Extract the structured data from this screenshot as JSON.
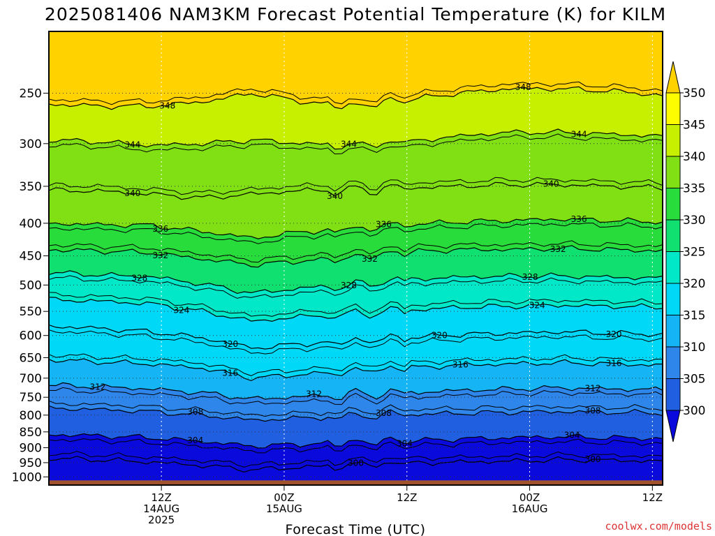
{
  "chart_data": {
    "type": "heatmap",
    "title": "2025081406 NAM3KM Forecast Potential Temperature (K) for KILM",
    "xlabel": "Forecast Time (UTC)",
    "ylabel": "",
    "credit": "coolwx.com/models",
    "y_axis": {
      "scale": "log-pressure",
      "ylim": [
        1030,
        200
      ],
      "tick_values": [
        250,
        300,
        350,
        400,
        450,
        500,
        550,
        600,
        650,
        700,
        750,
        800,
        850,
        900,
        950,
        1000
      ],
      "tick_labels": [
        "250",
        "300",
        "350",
        "400",
        "450",
        "500",
        "550",
        "600",
        "650",
        "700",
        "750",
        "800",
        "850",
        "900",
        "950",
        "1000"
      ]
    },
    "x_axis": {
      "range_hours": [
        -5,
        55
      ],
      "ticks": [
        {
          "hour": 6,
          "lines": [
            "12Z",
            "14AUG",
            "2025"
          ]
        },
        {
          "hour": 18,
          "lines": [
            "00Z",
            "15AUG"
          ]
        },
        {
          "hour": 30,
          "lines": [
            "12Z"
          ]
        },
        {
          "hour": 42,
          "lines": [
            "00Z",
            "16AUG"
          ]
        },
        {
          "hour": 54,
          "lines": [
            "12Z"
          ]
        }
      ]
    },
    "colorbar": {
      "levels": [
        300,
        305,
        310,
        315,
        320,
        325,
        330,
        335,
        340,
        345,
        350
      ],
      "labels": [
        "300",
        "305",
        "310",
        "315",
        "320",
        "325",
        "330",
        "335",
        "340",
        "345",
        "350"
      ],
      "colors": [
        "#0a0adc",
        "#1f5fe0",
        "#2f86ea",
        "#14b4f5",
        "#00d8f8",
        "#00e8c8",
        "#10e070",
        "#28dc3c",
        "#80e014",
        "#c6f000",
        "#fdfd00",
        "#ffd200"
      ]
    },
    "contour_interval": 4,
    "series": [
      {
        "name": "348",
        "label_hours": [
          6.5,
          41.5
        ],
        "values": [
          260,
          262,
          262,
          258,
          250,
          258,
          262,
          256,
          250,
          246,
          246,
          248,
          252
        ]
      },
      {
        "name": "344",
        "label_hours": [
          3,
          24,
          47
        ],
        "values": [
          296,
          298,
          302,
          300,
          296,
          300,
          302,
          298,
          292,
          288,
          288,
          290,
          292
        ]
      },
      {
        "name": "340",
        "label_hours": [
          3,
          23,
          44
        ],
        "values": [
          355,
          356,
          360,
          365,
          360,
          355,
          355,
          352,
          350,
          348,
          348,
          350,
          352
        ]
      },
      {
        "name": "336",
        "label_hours": [
          6,
          28,
          46.5
        ],
        "values": [
          400,
          402,
          403,
          412,
          422,
          412,
          408,
          402,
          398,
          396,
          394,
          396,
          398
        ]
      },
      {
        "name": "332",
        "label_hours": [
          6,
          26.5,
          45
        ],
        "values": [
          440,
          442,
          445,
          455,
          465,
          458,
          452,
          444,
          440,
          440,
          438,
          440,
          442
        ]
      },
      {
        "name": "328",
        "label_hours": [
          4,
          24,
          42
        ],
        "values": [
          478,
          482,
          485,
          498,
          515,
          505,
          500,
          490,
          486,
          484,
          484,
          486,
          488
        ]
      },
      {
        "name": "324",
        "label_hours": [
          8,
          43
        ],
        "values": [
          527,
          530,
          535,
          550,
          570,
          560,
          555,
          548,
          542,
          540,
          538,
          540,
          542
        ]
      },
      {
        "name": "320",
        "label_hours": [
          13,
          33,
          50
        ],
        "values": [
          580,
          585,
          592,
          605,
          628,
          618,
          612,
          605,
          598,
          595,
          592,
          595,
          598
        ]
      },
      {
        "name": "316",
        "label_hours": [
          13,
          35,
          50
        ],
        "values": [
          655,
          660,
          665,
          675,
          700,
          690,
          682,
          675,
          668,
          665,
          662,
          665,
          668
        ]
      },
      {
        "name": "312",
        "label_hours": [
          0,
          21,
          48
        ],
        "values": [
          718,
          722,
          728,
          738,
          755,
          748,
          742,
          738,
          732,
          728,
          725,
          728,
          730
        ]
      },
      {
        "name": "308",
        "label_hours": [
          9,
          28,
          48
        ],
        "values": [
          780,
          784,
          790,
          800,
          815,
          808,
          802,
          798,
          795,
          792,
          790,
          792,
          794
        ]
      },
      {
        "name": "304",
        "label_hours": [
          9,
          29.5,
          46
        ],
        "values": [
          858,
          862,
          868,
          880,
          895,
          888,
          882,
          878,
          872,
          868,
          865,
          868,
          870
        ]
      },
      {
        "name": "300",
        "label_hours": [
          25,
          48
        ],
        "values": [
          935,
          940,
          948,
          960,
          975,
          965,
          958,
          952,
          948,
          945,
          940,
          942,
          945
        ]
      }
    ]
  }
}
